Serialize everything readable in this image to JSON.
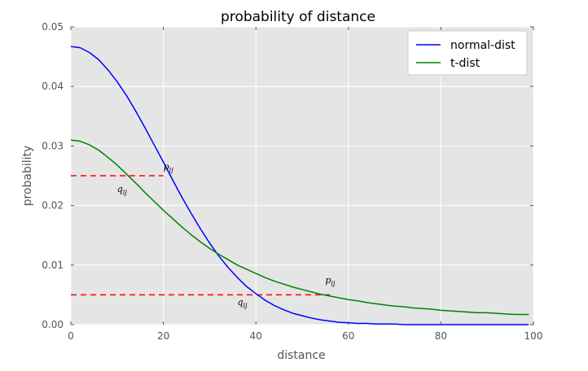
{
  "chart_data": {
    "type": "line",
    "title": "probability of distance",
    "xlabel": "distance",
    "ylabel": "probability",
    "xlim": [
      0,
      100
    ],
    "ylim": [
      0,
      0.05
    ],
    "grid": true,
    "legend_position": "top-right",
    "x_ticks": [
      {
        "value": 0,
        "label": "0"
      },
      {
        "value": 20,
        "label": "20"
      },
      {
        "value": 40,
        "label": "40"
      },
      {
        "value": 60,
        "label": "60"
      },
      {
        "value": 80,
        "label": "80"
      },
      {
        "value": 100,
        "label": "100"
      }
    ],
    "y_ticks": [
      {
        "value": 0,
        "label": "0.00"
      },
      {
        "value": 0.01,
        "label": "0.01"
      },
      {
        "value": 0.02,
        "label": "0.02"
      },
      {
        "value": 0.03,
        "label": "0.03"
      },
      {
        "value": 0.04,
        "label": "0.04"
      },
      {
        "value": 0.05,
        "label": "0.05"
      }
    ],
    "x": [
      0,
      2,
      4,
      6,
      8,
      10,
      12,
      14,
      16,
      18,
      20,
      22,
      24,
      26,
      28,
      30,
      32,
      34,
      36,
      38,
      40,
      42,
      44,
      46,
      48,
      50,
      52,
      54,
      56,
      58,
      60,
      62,
      64,
      66,
      68,
      70,
      72,
      74,
      76,
      78,
      80,
      82,
      84,
      86,
      88,
      90,
      92,
      94,
      96,
      98,
      99
    ],
    "series": [
      {
        "name": "normal-dist",
        "color": "#0000ff",
        "values": [
          0.0467,
          0.0465,
          0.0457,
          0.0445,
          0.0428,
          0.0408,
          0.0385,
          0.0359,
          0.0331,
          0.0302,
          0.0273,
          0.0243,
          0.0214,
          0.0187,
          0.0161,
          0.0137,
          0.0115,
          0.0096,
          0.0079,
          0.0064,
          0.0052,
          0.0041,
          0.0032,
          0.0025,
          0.0019,
          0.0015,
          0.0011,
          0.0008,
          0.0006,
          0.0004,
          0.0003,
          0.0002,
          0.0002,
          0.0001,
          0.0001,
          0.0001,
          0.0,
          0.0,
          0.0,
          0.0,
          0.0,
          0.0,
          0.0,
          0.0,
          0.0,
          0.0,
          0.0,
          0.0,
          0.0,
          0.0,
          0.0
        ]
      },
      {
        "name": "t-dist",
        "color": "#008000",
        "values": [
          0.031,
          0.0308,
          0.0302,
          0.0293,
          0.0281,
          0.0268,
          0.0253,
          0.0238,
          0.0222,
          0.0207,
          0.0192,
          0.0178,
          0.0164,
          0.0151,
          0.0139,
          0.0128,
          0.0118,
          0.0109,
          0.01,
          0.0093,
          0.0086,
          0.0079,
          0.0073,
          0.0068,
          0.0063,
          0.0059,
          0.0055,
          0.0051,
          0.0048,
          0.0045,
          0.0042,
          0.004,
          0.0037,
          0.0035,
          0.0033,
          0.0031,
          0.003,
          0.0028,
          0.0027,
          0.0026,
          0.0024,
          0.0023,
          0.0022,
          0.0021,
          0.002,
          0.002,
          0.0019,
          0.0018,
          0.0017,
          0.0017,
          0.0017
        ]
      }
    ],
    "reference_lines": [
      {
        "y": 0.025,
        "x_from": 0,
        "x_to": 20,
        "color": "#ff0000",
        "style": "dashed"
      },
      {
        "y": 0.005,
        "x_from": 0,
        "x_to": 56,
        "color": "#ff0000",
        "style": "dashed"
      }
    ],
    "annotations": [
      {
        "text": "p",
        "sub": "ij",
        "x": 20,
        "y": 0.026
      },
      {
        "text": "q",
        "sub": "ij",
        "x": 10,
        "y": 0.0223
      },
      {
        "text": "p",
        "sub": "ij",
        "x": 55,
        "y": 0.007
      },
      {
        "text": "q",
        "sub": "ij",
        "x": 36,
        "y": 0.0033
      }
    ]
  }
}
